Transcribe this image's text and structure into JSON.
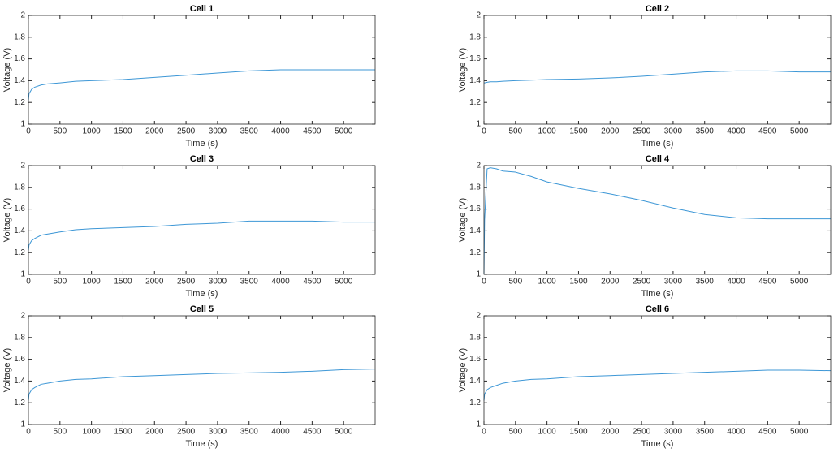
{
  "chart_data": [
    {
      "type": "line",
      "title": "Cell 1",
      "xlabel": "Time (s)",
      "ylabel": "Voltage (V)",
      "color": "#3d97d6",
      "x": [
        0,
        10,
        50,
        100,
        200,
        300,
        500,
        750,
        1000,
        1500,
        2000,
        2500,
        3000,
        3500,
        4000,
        4500,
        5000,
        5500
      ],
      "values": [
        1.22,
        1.28,
        1.32,
        1.34,
        1.36,
        1.37,
        1.38,
        1.395,
        1.4,
        1.41,
        1.43,
        1.45,
        1.47,
        1.49,
        1.5,
        1.5,
        1.5,
        1.5
      ],
      "xlim": [
        0,
        5500
      ],
      "ylim": [
        1,
        2
      ],
      "xticks": [
        0,
        500,
        1000,
        1500,
        2000,
        2500,
        3000,
        3500,
        4000,
        4500,
        5000
      ],
      "yticks": [
        1,
        1.2,
        1.4,
        1.6,
        1.8,
        2
      ]
    },
    {
      "type": "line",
      "title": "Cell 2",
      "xlabel": "Time (s)",
      "ylabel": "Voltage (V)",
      "color": "#3d97d6",
      "x": [
        0,
        10,
        50,
        100,
        200,
        300,
        500,
        750,
        1000,
        1500,
        2000,
        2500,
        3000,
        3500,
        4000,
        4500,
        5000,
        5500
      ],
      "values": [
        1.38,
        1.38,
        1.385,
        1.39,
        1.39,
        1.395,
        1.4,
        1.405,
        1.41,
        1.415,
        1.425,
        1.44,
        1.46,
        1.48,
        1.49,
        1.49,
        1.48,
        1.48
      ],
      "xlim": [
        0,
        5500
      ],
      "ylim": [
        1,
        2
      ],
      "xticks": [
        0,
        500,
        1000,
        1500,
        2000,
        2500,
        3000,
        3500,
        4000,
        4500,
        5000
      ],
      "yticks": [
        1,
        1.2,
        1.4,
        1.6,
        1.8,
        2
      ]
    },
    {
      "type": "line",
      "title": "Cell 3",
      "xlabel": "Time (s)",
      "ylabel": "Voltage (V)",
      "color": "#3d97d6",
      "x": [
        0,
        10,
        50,
        100,
        200,
        300,
        500,
        750,
        1000,
        1500,
        2000,
        2500,
        3000,
        3500,
        4000,
        4500,
        5000,
        5500
      ],
      "values": [
        1.22,
        1.27,
        1.31,
        1.33,
        1.36,
        1.37,
        1.39,
        1.41,
        1.42,
        1.43,
        1.44,
        1.46,
        1.47,
        1.49,
        1.49,
        1.49,
        1.48,
        1.48
      ],
      "xlim": [
        0,
        5500
      ],
      "ylim": [
        1,
        2
      ],
      "xticks": [
        0,
        500,
        1000,
        1500,
        2000,
        2500,
        3000,
        3500,
        4000,
        4500,
        5000
      ],
      "yticks": [
        1,
        1.2,
        1.4,
        1.6,
        1.8,
        2
      ]
    },
    {
      "type": "line",
      "title": "Cell 4",
      "xlabel": "Time (s)",
      "ylabel": "Voltage (V)",
      "color": "#3d97d6",
      "x": [
        0,
        10,
        50,
        100,
        200,
        300,
        500,
        750,
        1000,
        1500,
        2000,
        2500,
        3000,
        3500,
        4000,
        4500,
        5000,
        5500
      ],
      "values": [
        1.0,
        1.5,
        1.97,
        1.98,
        1.97,
        1.95,
        1.94,
        1.9,
        1.85,
        1.79,
        1.74,
        1.68,
        1.61,
        1.55,
        1.52,
        1.51,
        1.51,
        1.51
      ],
      "xlim": [
        0,
        5500
      ],
      "ylim": [
        1,
        2
      ],
      "xticks": [
        0,
        500,
        1000,
        1500,
        2000,
        2500,
        3000,
        3500,
        4000,
        4500,
        5000
      ],
      "yticks": [
        1,
        1.2,
        1.4,
        1.6,
        1.8,
        2
      ]
    },
    {
      "type": "line",
      "title": "Cell 5",
      "xlabel": "Time (s)",
      "ylabel": "Voltage (V)",
      "color": "#3d97d6",
      "x": [
        0,
        10,
        50,
        100,
        200,
        300,
        500,
        750,
        1000,
        1500,
        2000,
        2500,
        3000,
        3500,
        4000,
        4500,
        5000,
        5500
      ],
      "values": [
        1.22,
        1.28,
        1.32,
        1.34,
        1.37,
        1.38,
        1.4,
        1.415,
        1.42,
        1.44,
        1.45,
        1.46,
        1.47,
        1.475,
        1.48,
        1.49,
        1.505,
        1.51
      ],
      "xlim": [
        0,
        5500
      ],
      "ylim": [
        1,
        2
      ],
      "xticks": [
        0,
        500,
        1000,
        1500,
        2000,
        2500,
        3000,
        3500,
        4000,
        4500,
        5000
      ],
      "yticks": [
        1,
        1.2,
        1.4,
        1.6,
        1.8,
        2
      ]
    },
    {
      "type": "line",
      "title": "Cell 6",
      "xlabel": "Time (s)",
      "ylabel": "Voltage (V)",
      "color": "#3d97d6",
      "x": [
        0,
        10,
        50,
        100,
        200,
        300,
        500,
        750,
        1000,
        1500,
        2000,
        2500,
        3000,
        3500,
        4000,
        4500,
        5000,
        5500
      ],
      "values": [
        1.22,
        1.28,
        1.32,
        1.34,
        1.36,
        1.38,
        1.4,
        1.415,
        1.42,
        1.44,
        1.45,
        1.46,
        1.47,
        1.48,
        1.49,
        1.5,
        1.5,
        1.495
      ],
      "xlim": [
        0,
        5500
      ],
      "ylim": [
        1,
        2
      ],
      "xticks": [
        0,
        500,
        1000,
        1500,
        2000,
        2500,
        3000,
        3500,
        4000,
        4500,
        5000
      ],
      "yticks": [
        1,
        1.2,
        1.4,
        1.6,
        1.8,
        2
      ]
    }
  ]
}
